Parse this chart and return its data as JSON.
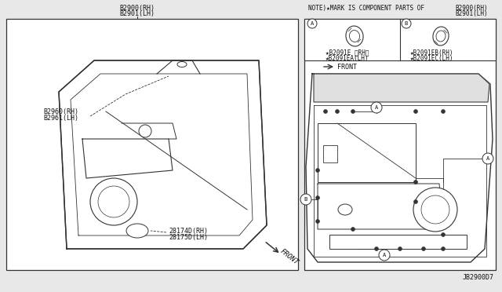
{
  "bg_color": "#e8e8e8",
  "panel_bg": "#ffffff",
  "line_color": "#333333",
  "text_color": "#111111",
  "note_text": "NOTE)★MARK IS COMPONENT PARTS OF",
  "note_part1": "B2900(RH)",
  "note_part2": "B2901(LH)",
  "label_top1": "B2900(RH)",
  "label_top2": "B2901(LH)",
  "label_mid1": "B2960(RH)",
  "label_mid2": "B2961(LH)",
  "label_bot1": "28174D(RH)",
  "label_bot2": "28175D(LH)",
  "part_a_line1": "★B2091E ＜RH＞",
  "part_a_line2": "★B2091EA(LH)",
  "part_b_line1": "★B2091EB(RH)",
  "part_b_line2": "★B2091EC(LH)",
  "front_label": "FRONT",
  "diagram_id": "JB2900D7",
  "fs": 6.0
}
